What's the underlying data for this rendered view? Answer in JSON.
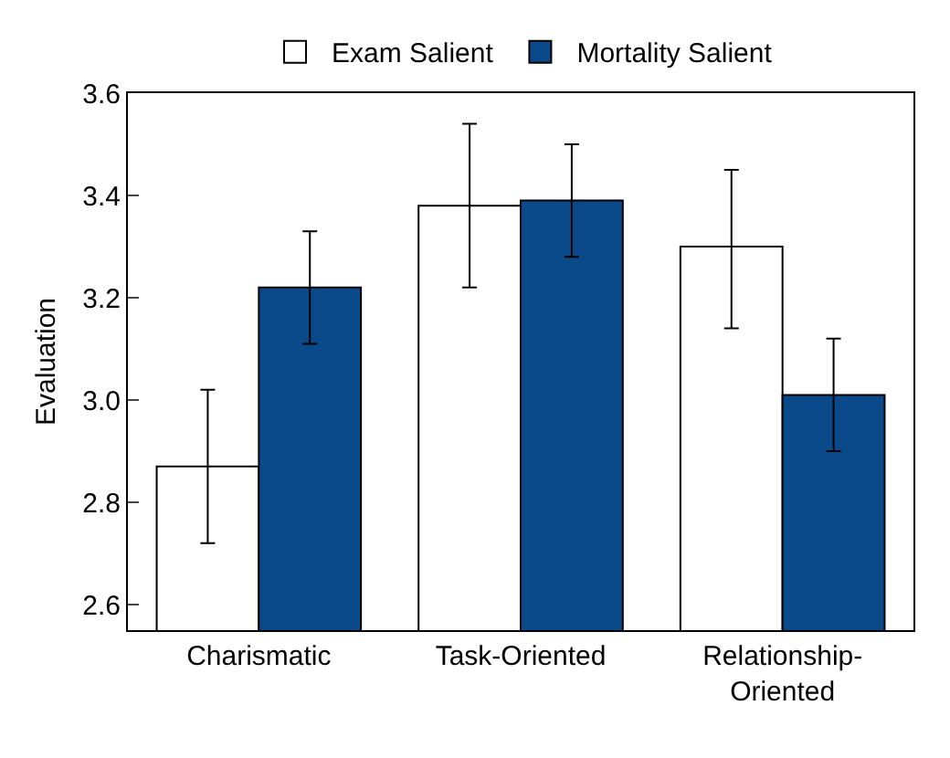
{
  "chart_data": {
    "type": "bar",
    "ylabel": "Evaluation",
    "categories": [
      "Charismatic",
      "Task-Oriented",
      "Relationship-Oriented"
    ],
    "series": [
      {
        "name": "Exam Salient",
        "color": "#ffffff",
        "values": [
          2.87,
          3.38,
          3.3
        ],
        "errors": [
          [
            2.72,
            3.02
          ],
          [
            3.22,
            3.54
          ],
          [
            3.14,
            3.45
          ]
        ]
      },
      {
        "name": "Mortality Salient",
        "color": "#0b4a8a",
        "values": [
          3.22,
          3.39,
          3.01
        ],
        "errors": [
          [
            3.11,
            3.33
          ],
          [
            3.28,
            3.5
          ],
          [
            2.9,
            3.12
          ]
        ]
      }
    ],
    "ylim": [
      2.55,
      3.6
    ],
    "yticks": [
      2.6,
      2.8,
      {
        "value": 3,
        "label": "3.0"
      },
      3.2,
      3.4,
      3.6
    ],
    "grid": false,
    "legend": "top"
  }
}
